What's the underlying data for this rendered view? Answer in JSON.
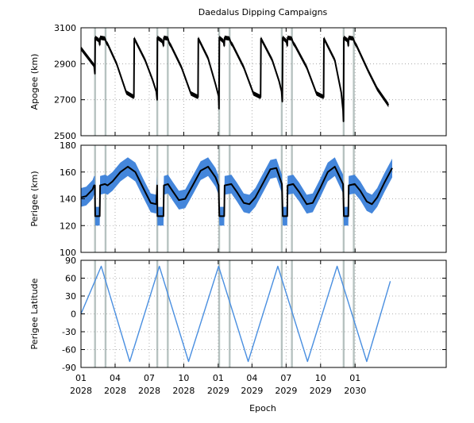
{
  "chart_data": {
    "type": "line",
    "title": "Daedalus Dipping Campaigns",
    "xlabel": "Epoch",
    "x_range": [
      "2028-01-01",
      "2030-09-01"
    ],
    "x_ticks": [
      {
        "top": "01",
        "bottom": "2028",
        "date": "2028-01-01"
      },
      {
        "top": "04",
        "bottom": "2028",
        "date": "2028-04-01"
      },
      {
        "top": "07",
        "bottom": "2028",
        "date": "2028-07-01"
      },
      {
        "top": "10",
        "bottom": "2028",
        "date": "2028-10-01"
      },
      {
        "top": "01",
        "bottom": "2029",
        "date": "2029-01-01"
      },
      {
        "top": "04",
        "bottom": "2029",
        "date": "2029-04-01"
      },
      {
        "top": "07",
        "bottom": "2029",
        "date": "2029-07-01"
      },
      {
        "top": "10",
        "bottom": "2029",
        "date": "2029-10-01"
      },
      {
        "top": "01",
        "bottom": "2030",
        "date": "2030-01-01"
      }
    ],
    "campaign_bands": [
      {
        "start": "2028-02-05",
        "end": "2028-02-10"
      },
      {
        "start": "2028-03-04",
        "end": "2028-03-09"
      },
      {
        "start": "2028-07-20",
        "end": "2028-07-25"
      },
      {
        "start": "2028-08-17",
        "end": "2028-08-22"
      },
      {
        "start": "2029-01-01",
        "end": "2029-01-06"
      },
      {
        "start": "2029-01-29",
        "end": "2029-02-03"
      },
      {
        "start": "2029-06-17",
        "end": "2029-06-22"
      },
      {
        "start": "2029-07-14",
        "end": "2029-07-19"
      },
      {
        "start": "2029-11-29",
        "end": "2029-12-04"
      },
      {
        "start": "2029-12-26",
        "end": "2029-12-31"
      }
    ],
    "panels": [
      {
        "ylabel": "Apogee (km)",
        "ylim": [
          2500,
          3100
        ],
        "yticks": [
          2500,
          2700,
          2900,
          3100
        ],
        "grid": true,
        "series": [
          {
            "color": "#000000",
            "band_color": "#000000",
            "band_halfwidth": 12,
            "points": [
              [
                "2028-01-01",
                2985
              ],
              [
                "2028-02-05",
                2890
              ],
              [
                "2028-02-07",
                2845
              ],
              [
                "2028-02-08",
                3045
              ],
              [
                "2028-02-18",
                3030
              ],
              [
                "2028-02-20",
                3005
              ],
              [
                "2028-02-21",
                3045
              ],
              [
                "2028-03-05",
                3040
              ],
              [
                "2028-03-09",
                3015
              ],
              [
                "2028-03-12",
                3010
              ],
              [
                "2028-04-05",
                2900
              ],
              [
                "2028-05-01",
                2740
              ],
              [
                "2028-05-21",
                2715
              ],
              [
                "2028-05-22",
                3040
              ],
              [
                "2028-06-20",
                2920
              ],
              [
                "2028-07-10",
                2810
              ],
              [
                "2028-07-20",
                2745
              ],
              [
                "2028-07-22",
                2700
              ],
              [
                "2028-07-23",
                3045
              ],
              [
                "2028-08-05",
                3025
              ],
              [
                "2028-08-08",
                3000
              ],
              [
                "2028-08-09",
                3045
              ],
              [
                "2028-08-20",
                3040
              ],
              [
                "2028-08-23",
                3015
              ],
              [
                "2028-08-28",
                3000
              ],
              [
                "2028-09-25",
                2880
              ],
              [
                "2028-10-20",
                2735
              ],
              [
                "2028-11-08",
                2715
              ],
              [
                "2028-11-09",
                3040
              ],
              [
                "2028-12-05",
                2930
              ],
              [
                "2028-12-25",
                2785
              ],
              [
                "2029-01-02",
                2720
              ],
              [
                "2029-01-03",
                2650
              ],
              [
                "2029-01-04",
                3045
              ],
              [
                "2029-01-15",
                3025
              ],
              [
                "2029-01-17",
                3000
              ],
              [
                "2029-01-18",
                3045
              ],
              [
                "2029-01-31",
                3040
              ],
              [
                "2029-02-04",
                3015
              ],
              [
                "2029-02-08",
                3005
              ],
              [
                "2029-03-10",
                2880
              ],
              [
                "2029-04-05",
                2735
              ],
              [
                "2029-04-24",
                2715
              ],
              [
                "2029-04-25",
                3040
              ],
              [
                "2029-05-25",
                2920
              ],
              [
                "2029-06-12",
                2805
              ],
              [
                "2029-06-19",
                2745
              ],
              [
                "2029-06-21",
                2690
              ],
              [
                "2029-06-22",
                3045
              ],
              [
                "2029-07-02",
                3025
              ],
              [
                "2029-07-04",
                3000
              ],
              [
                "2029-07-05",
                3045
              ],
              [
                "2029-07-16",
                3040
              ],
              [
                "2029-07-20",
                3015
              ],
              [
                "2029-07-25",
                3000
              ],
              [
                "2029-08-25",
                2880
              ],
              [
                "2029-09-20",
                2735
              ],
              [
                "2029-10-09",
                2715
              ],
              [
                "2029-10-10",
                3040
              ],
              [
                "2029-11-08",
                2920
              ],
              [
                "2029-11-25",
                2740
              ],
              [
                "2029-11-30",
                2640
              ],
              [
                "2029-12-01",
                2580
              ],
              [
                "2029-12-02",
                3045
              ],
              [
                "2029-12-12",
                3030
              ],
              [
                "2029-12-14",
                3000
              ],
              [
                "2029-12-15",
                3045
              ],
              [
                "2029-12-27",
                3040
              ],
              [
                "2029-12-31",
                3015
              ],
              [
                "2030-01-05",
                3000
              ],
              [
                "2030-02-05",
                2860
              ],
              [
                "2030-03-01",
                2760
              ],
              [
                "2030-03-31",
                2670
              ]
            ]
          }
        ]
      },
      {
        "ylabel": "Perigee (km)",
        "ylim": [
          100,
          180
        ],
        "yticks": [
          100,
          120,
          140,
          160,
          180
        ],
        "grid": true,
        "series": [
          {
            "color": "#000000",
            "band_color": "#3a7fd9",
            "band_halfwidth": 7,
            "points": [
              [
                "2028-01-01",
                141
              ],
              [
                "2028-01-15",
                142
              ],
              [
                "2028-02-01",
                147
              ],
              [
                "2028-02-05",
                150
              ],
              [
                "2028-02-07",
                150
              ],
              [
                "2028-02-08",
                127
              ],
              [
                "2028-02-20",
                127
              ],
              [
                "2028-02-21",
                150
              ],
              [
                "2028-03-05",
                151
              ],
              [
                "2028-03-12",
                150
              ],
              [
                "2028-03-25",
                153
              ],
              [
                "2028-04-15",
                160
              ],
              [
                "2028-05-05",
                164
              ],
              [
                "2028-05-25",
                160
              ],
              [
                "2028-06-15",
                148
              ],
              [
                "2028-07-05",
                137
              ],
              [
                "2028-07-20",
                136
              ],
              [
                "2028-07-22",
                150
              ],
              [
                "2028-07-23",
                127
              ],
              [
                "2028-08-08",
                127
              ],
              [
                "2028-08-09",
                150
              ],
              [
                "2028-08-20",
                151
              ],
              [
                "2028-09-01",
                146
              ],
              [
                "2028-09-18",
                139
              ],
              [
                "2028-10-05",
                140
              ],
              [
                "2028-10-25",
                150
              ],
              [
                "2028-11-15",
                161
              ],
              [
                "2028-12-05",
                164
              ],
              [
                "2028-12-25",
                156
              ],
              [
                "2029-01-02",
                150
              ],
              [
                "2029-01-04",
                127
              ],
              [
                "2029-01-17",
                127
              ],
              [
                "2029-01-18",
                150
              ],
              [
                "2029-02-05",
                151
              ],
              [
                "2029-02-20",
                145
              ],
              [
                "2029-03-10",
                137
              ],
              [
                "2029-03-25",
                136
              ],
              [
                "2029-04-10",
                141
              ],
              [
                "2029-05-01",
                152
              ],
              [
                "2029-05-20",
                162
              ],
              [
                "2029-06-05",
                163
              ],
              [
                "2029-06-20",
                151
              ],
              [
                "2029-06-22",
                127
              ],
              [
                "2029-07-04",
                127
              ],
              [
                "2029-07-05",
                150
              ],
              [
                "2029-07-20",
                151
              ],
              [
                "2029-08-05",
                145
              ],
              [
                "2029-08-25",
                136
              ],
              [
                "2029-09-10",
                137
              ],
              [
                "2029-09-30",
                148
              ],
              [
                "2029-10-20",
                160
              ],
              [
                "2029-11-08",
                164
              ],
              [
                "2029-11-30",
                151
              ],
              [
                "2029-12-02",
                127
              ],
              [
                "2029-12-14",
                127
              ],
              [
                "2029-12-15",
                150
              ],
              [
                "2029-12-31",
                151
              ],
              [
                "2030-01-15",
                146
              ],
              [
                "2030-02-01",
                138
              ],
              [
                "2030-02-15",
                136
              ],
              [
                "2030-03-01",
                141
              ],
              [
                "2030-03-20",
                152
              ],
              [
                "2030-04-10",
                163
              ]
            ]
          }
        ]
      },
      {
        "ylabel": "Perigee Latitude",
        "ylim": [
          -90,
          90
        ],
        "yticks": [
          -90,
          -60,
          -30,
          0,
          30,
          60,
          90
        ],
        "grid": true,
        "series": [
          {
            "color": "#4a8fe0",
            "points": [
              [
                "2028-01-01",
                0
              ],
              [
                "2028-02-24",
                80
              ],
              [
                "2028-05-10",
                -80
              ],
              [
                "2028-07-28",
                80
              ],
              [
                "2028-10-14",
                -80
              ],
              [
                "2029-01-02",
                80
              ],
              [
                "2029-03-22",
                -80
              ],
              [
                "2029-06-09",
                80
              ],
              [
                "2029-08-27",
                -80
              ],
              [
                "2029-11-14",
                80
              ],
              [
                "2030-02-01",
                -80
              ],
              [
                "2030-04-05",
                55
              ]
            ]
          }
        ]
      }
    ]
  }
}
